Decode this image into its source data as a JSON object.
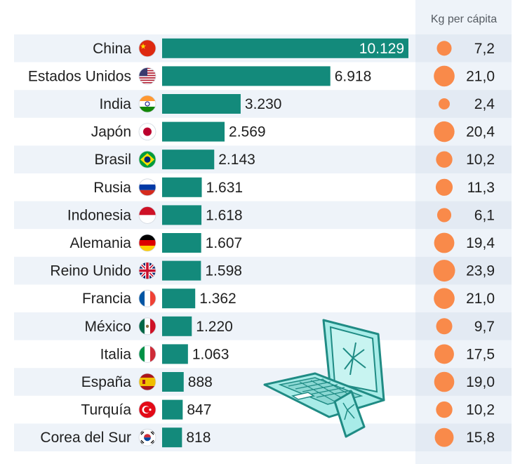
{
  "header": {
    "per_capita_label": "Kg per cápita"
  },
  "colors": {
    "bar": "#138a7b",
    "dot": "#f98a4a",
    "row_band": "#eef3f9",
    "side_band": "#eef3f9"
  },
  "chart_data": {
    "type": "bar",
    "orientation": "horizontal",
    "categories": [
      "China",
      "Estados Unidos",
      "India",
      "Japón",
      "Brasil",
      "Rusia",
      "Indonesia",
      "Alemania",
      "Reino Unido",
      "Francia",
      "México",
      "Italia",
      "España",
      "Turquía",
      "Corea del Sur"
    ],
    "series": [
      {
        "values": [
          10129,
          6918,
          3230,
          2569,
          2143,
          1631,
          1618,
          1607,
          1598,
          1362,
          1220,
          1063,
          888,
          847,
          818
        ]
      }
    ],
    "value_labels": [
      "10.129",
      "6.918",
      "3.230",
      "2.569",
      "2.143",
      "1.631",
      "1.618",
      "1.607",
      "1.598",
      "1.362",
      "1.220",
      "1.063",
      "888",
      "847",
      "818"
    ],
    "per_capita": {
      "title": "Kg per cápita",
      "values": [
        7.2,
        21.0,
        2.4,
        20.4,
        10.2,
        11.3,
        6.1,
        19.4,
        23.9,
        21.0,
        9.7,
        17.5,
        19.0,
        10.2,
        15.8
      ],
      "labels": [
        "7,2",
        "21,0",
        "2,4",
        "20,4",
        "10,2",
        "11,3",
        "6,1",
        "19,4",
        "23,9",
        "21,0",
        "9,7",
        "17,5",
        "19,0",
        "10,2",
        "15,8"
      ]
    },
    "flags": [
      "cn-flag-icon",
      "us-flag-icon",
      "in-flag-icon",
      "jp-flag-icon",
      "br-flag-icon",
      "ru-flag-icon",
      "id-flag-icon",
      "de-flag-icon",
      "gb-flag-icon",
      "fr-flag-icon",
      "mx-flag-icon",
      "it-flag-icon",
      "es-flag-icon",
      "tr-flag-icon",
      "kr-flag-icon"
    ],
    "xlim": [
      0,
      10129
    ],
    "grid": false,
    "legend": "none"
  },
  "decoration": {
    "icon": "broken-laptop-and-phone-icon"
  }
}
